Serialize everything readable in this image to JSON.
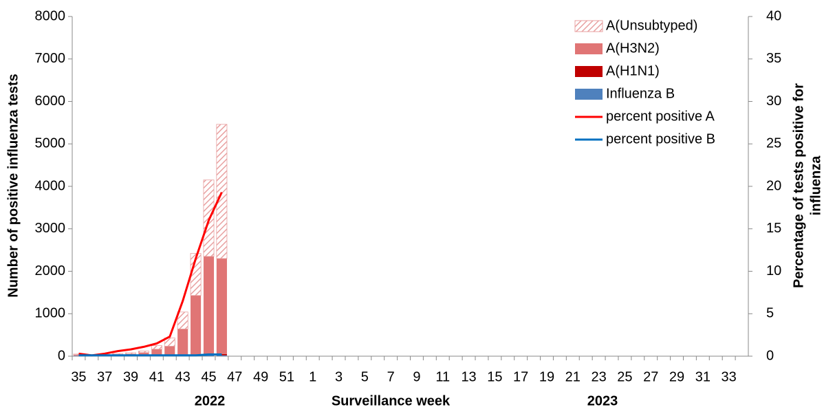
{
  "chart_data": {
    "type": "bar",
    "y_label": "Number of positive influenza tests",
    "y2_label_lines": [
      "Percentage of tests positive for",
      "influenza"
    ],
    "x_label": "Surveillance  week",
    "year_labels": [
      "2022",
      "2023"
    ],
    "categories": [
      35,
      null,
      37,
      null,
      39,
      null,
      41,
      null,
      43,
      null,
      45,
      null,
      47,
      null,
      49,
      null,
      51,
      null,
      1,
      null,
      3,
      null,
      5,
      null,
      7,
      null,
      9,
      null,
      11,
      null,
      13,
      null,
      15,
      null,
      17,
      null,
      19,
      null,
      21,
      null,
      23,
      null,
      25,
      null,
      27,
      null,
      29,
      null,
      31,
      null,
      33,
      null
    ],
    "ylim": [
      0,
      8000
    ],
    "yticks": [
      0,
      1000,
      2000,
      3000,
      4000,
      5000,
      6000,
      7000,
      8000
    ],
    "y2lim": [
      0,
      40
    ],
    "y2ticks": [
      0,
      5,
      10,
      15,
      20,
      25,
      30,
      35,
      40
    ],
    "legend": "top-right",
    "series": [
      {
        "name": "Influenza B",
        "type": "bar",
        "color": "#4f81bd",
        "values": [
          10,
          5,
          8,
          10,
          10,
          10,
          10,
          10,
          10,
          15,
          20,
          20,
          null,
          null,
          null,
          null,
          null,
          null,
          null,
          null,
          null,
          null,
          null,
          null,
          null,
          null,
          null,
          null,
          null,
          null,
          null,
          null,
          null,
          null,
          null,
          null,
          null,
          null,
          null,
          null,
          null,
          null,
          null,
          null,
          null,
          null,
          null,
          null,
          null,
          null,
          null,
          null
        ]
      },
      {
        "name": "A(H1N1)",
        "type": "bar",
        "color": "#c00000",
        "values": [
          2,
          1,
          2,
          3,
          3,
          5,
          5,
          5,
          10,
          15,
          30,
          30,
          null,
          null,
          null,
          null,
          null,
          null,
          null,
          null,
          null,
          null,
          null,
          null,
          null,
          null,
          null,
          null,
          null,
          null,
          null,
          null,
          null,
          null,
          null,
          null,
          null,
          null,
          null,
          null,
          null,
          null,
          null,
          null,
          null,
          null,
          null,
          null,
          null,
          null,
          null,
          null
        ]
      },
      {
        "name": "A(H3N2)",
        "type": "bar",
        "color": "#e07575",
        "values": [
          20,
          8,
          15,
          25,
          40,
          70,
          150,
          220,
          620,
          1400,
          2300,
          2250,
          null,
          null,
          null,
          null,
          null,
          null,
          null,
          null,
          null,
          null,
          null,
          null,
          null,
          null,
          null,
          null,
          null,
          null,
          null,
          null,
          null,
          null,
          null,
          null,
          null,
          null,
          null,
          null,
          null,
          null,
          null,
          null,
          null,
          null,
          null,
          null,
          null,
          null,
          null,
          null
        ]
      },
      {
        "name": "A(Unsubtyped)",
        "type": "bar",
        "color": "#e8a0a0",
        "pattern": "hatch",
        "values": [
          18,
          6,
          15,
          22,
          27,
          35,
          85,
          195,
          400,
          990,
          1800,
          3160,
          null,
          null,
          null,
          null,
          null,
          null,
          null,
          null,
          null,
          null,
          null,
          null,
          null,
          null,
          null,
          null,
          null,
          null,
          null,
          null,
          null,
          null,
          null,
          null,
          null,
          null,
          null,
          null,
          null,
          null,
          null,
          null,
          null,
          null,
          null,
          null,
          null,
          null,
          null,
          null
        ]
      },
      {
        "name": "percent positive A",
        "type": "line",
        "axis": "y2",
        "color": "#ff0000",
        "values": [
          0.3,
          0.1,
          0.3,
          0.6,
          0.8,
          1.1,
          1.5,
          2.3,
          6.5,
          11.5,
          16,
          19.3,
          null,
          null,
          null,
          null,
          null,
          null,
          null,
          null,
          null,
          null,
          null,
          null,
          null,
          null,
          null,
          null,
          null,
          null,
          null,
          null,
          null,
          null,
          null,
          null,
          null,
          null,
          null,
          null,
          null,
          null,
          null,
          null,
          null,
          null,
          null,
          null,
          null,
          null,
          null,
          null
        ]
      },
      {
        "name": "percent positive B",
        "type": "line",
        "axis": "y2",
        "color": "#0070c0",
        "values": [
          0.1,
          0.1,
          0.1,
          0.1,
          0.1,
          0.1,
          0.1,
          0.1,
          0.1,
          0.1,
          0.2,
          0.2,
          null,
          null,
          null,
          null,
          null,
          null,
          null,
          null,
          null,
          null,
          null,
          null,
          null,
          null,
          null,
          null,
          null,
          null,
          null,
          null,
          null,
          null,
          null,
          null,
          null,
          null,
          null,
          null,
          null,
          null,
          null,
          null,
          null,
          null,
          null,
          null,
          null,
          null,
          null,
          null
        ]
      }
    ]
  }
}
